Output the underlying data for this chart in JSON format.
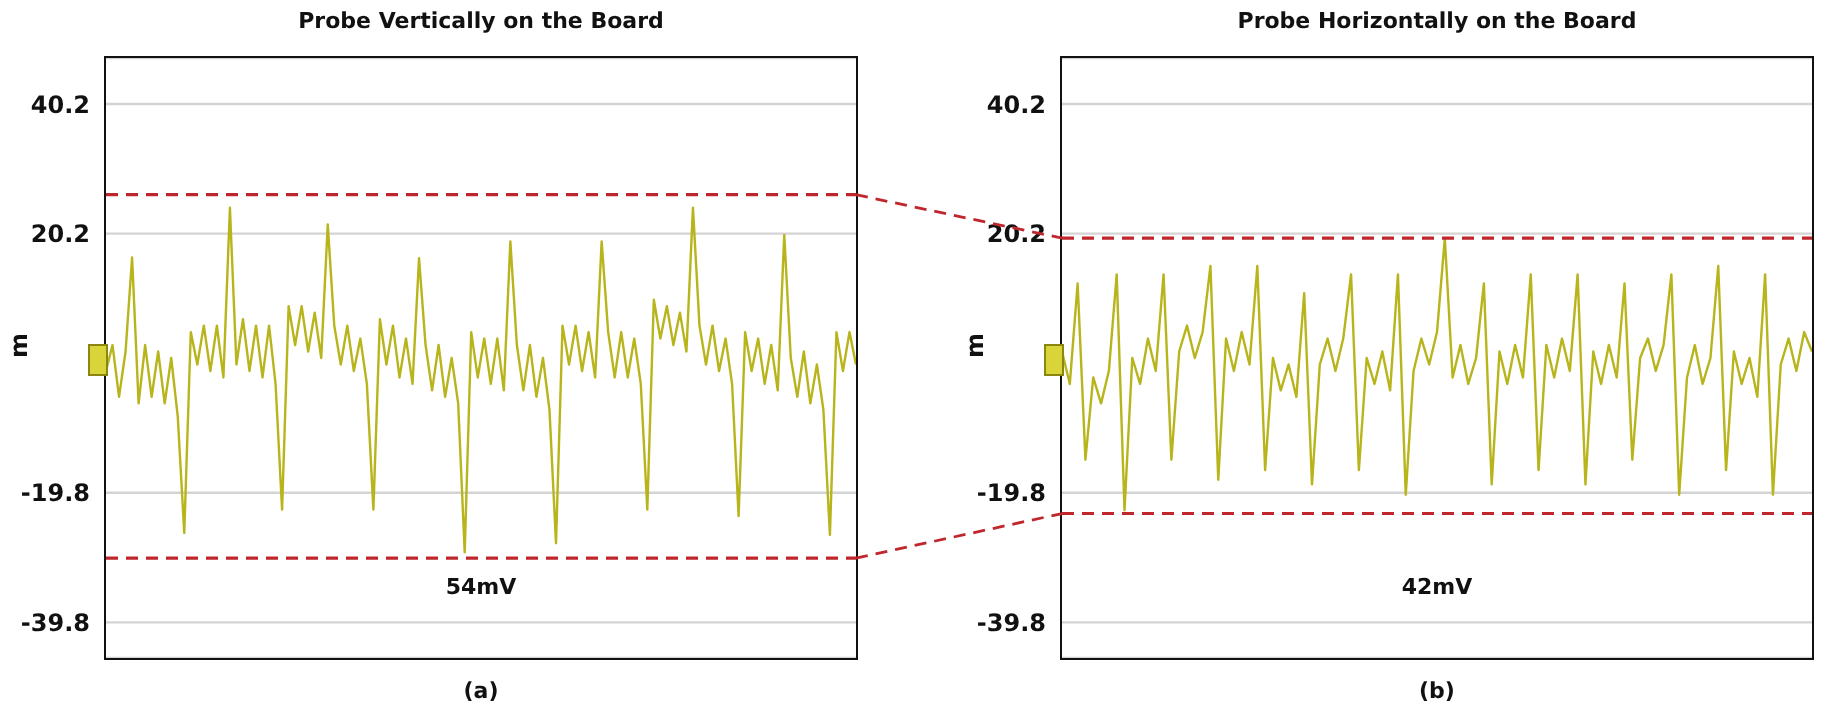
{
  "chart_data": [
    {
      "type": "line",
      "title": "Probe Vertically on the Board",
      "ylabel": "m",
      "annotations": [
        "54mV",
        "(a)"
      ],
      "categories": [
        null,
        null,
        null,
        null,
        null,
        null,
        null,
        null,
        null,
        null,
        null,
        null,
        null,
        null,
        null,
        null,
        null,
        null,
        null,
        null,
        null,
        null,
        null,
        null,
        null,
        null,
        null,
        null,
        null,
        null,
        null,
        null,
        null,
        null,
        null,
        null,
        null,
        null,
        null,
        null,
        null,
        null,
        null,
        null,
        null,
        null,
        null,
        null,
        null,
        null,
        null,
        null,
        null,
        null,
        null,
        null,
        null,
        null,
        null,
        null,
        null,
        null,
        null,
        null,
        null,
        null,
        null,
        null,
        null,
        null,
        null,
        null,
        null,
        null,
        null,
        null,
        null,
        null,
        null,
        null,
        null,
        null,
        null,
        null,
        null,
        null,
        null,
        null,
        null,
        null,
        null,
        null,
        null,
        null,
        null,
        null,
        null,
        null,
        null,
        null,
        null,
        null,
        null,
        null,
        null,
        null,
        null,
        null,
        null,
        null,
        null,
        null,
        null,
        null,
        null,
        null
      ],
      "series": [
        {
          "color": "#b8b41c",
          "values": [
            -1,
            3,
            -5,
            2,
            16.5,
            -6,
            3,
            -5,
            2,
            -6,
            1,
            -8,
            -26,
            5,
            0,
            6,
            -1,
            6,
            -2,
            24.2,
            0,
            7,
            -1,
            6,
            -2,
            6,
            -3,
            -22.4,
            9,
            3,
            9,
            2,
            8,
            1,
            21.6,
            6,
            0,
            6,
            -1,
            4,
            -3,
            -22.4,
            7,
            0,
            6,
            -2,
            4,
            -3,
            16.4,
            3,
            -4,
            3,
            -5,
            1,
            -6,
            -29,
            5,
            -2,
            4,
            -3,
            4,
            -4,
            19,
            3,
            -4,
            3,
            -5,
            1,
            -7,
            -27.6,
            6,
            0,
            6,
            -1,
            5,
            -2,
            19,
            5,
            -2,
            5,
            -2,
            4,
            -3,
            -22.4,
            10,
            4,
            9,
            3,
            8,
            2,
            24.2,
            6,
            0,
            6,
            -1,
            4,
            -3,
            -23.4,
            5,
            -1,
            4,
            -3,
            3,
            -4,
            20,
            1,
            -5,
            2,
            -6,
            0,
            -7,
            -26.3,
            5,
            -1,
            5,
            0
          ]
        }
      ],
      "ylim": [
        -45.3,
        47.3
      ],
      "yticks": [
        -39.8,
        -19.8,
        20.2,
        40.2
      ],
      "tick_labels": "y",
      "grid": "y",
      "marker": "none",
      "line_style": "solid",
      "ref_lines": [
        {
          "axis": "y",
          "value": 26.2,
          "color": "#c0272d",
          "line_style": "dashed"
        },
        {
          "axis": "y",
          "value": -29.9,
          "color": "#c0272d",
          "line_style": "dashed"
        }
      ]
    },
    {
      "type": "line",
      "title": "Probe Horizontally on the Board",
      "ylabel": "m",
      "annotations": [
        "42mV",
        "(b)"
      ],
      "categories": [
        null,
        null,
        null,
        null,
        null,
        null,
        null,
        null,
        null,
        null,
        null,
        null,
        null,
        null,
        null,
        null,
        null,
        null,
        null,
        null,
        null,
        null,
        null,
        null,
        null,
        null,
        null,
        null,
        null,
        null,
        null,
        null,
        null,
        null,
        null,
        null,
        null,
        null,
        null,
        null,
        null,
        null,
        null,
        null,
        null,
        null,
        null,
        null,
        null,
        null,
        null,
        null,
        null,
        null,
        null,
        null,
        null,
        null,
        null,
        null,
        null,
        null,
        null,
        null,
        null,
        null,
        null,
        null,
        null,
        null,
        null,
        null,
        null,
        null,
        null,
        null,
        null,
        null,
        null,
        null,
        null,
        null,
        null,
        null,
        null,
        null,
        null,
        null,
        null,
        null,
        null,
        null,
        null,
        null,
        null,
        null,
        null
      ],
      "series": [
        {
          "color": "#b8b41c",
          "values": [
            2,
            -3,
            12.5,
            -14.7,
            -2,
            -6,
            -1,
            13.9,
            -22.5,
            1,
            -3,
            4,
            -1,
            13.9,
            -14.7,
            2,
            6,
            1,
            5,
            15.2,
            -17.8,
            4,
            -1,
            5,
            0,
            15.2,
            -16.3,
            1,
            -4,
            0,
            -5,
            11,
            -18.5,
            0,
            4,
            -1,
            4,
            13.9,
            -16.3,
            1,
            -3,
            2,
            -4,
            13.9,
            -20.1,
            -1,
            4,
            0,
            5,
            19.5,
            -2,
            3,
            -3,
            1,
            12.5,
            -18.5,
            2,
            -3,
            3,
            -2,
            13.9,
            -16.3,
            3,
            -2,
            4,
            -1,
            13.9,
            -18.5,
            2,
            -3,
            3,
            -2,
            12.5,
            -14.7,
            1,
            4,
            -1,
            3,
            13.9,
            -20.1,
            -2,
            3,
            -3,
            1,
            15.2,
            -16.3,
            2,
            -3,
            1,
            -5,
            13.9,
            -20.1,
            0,
            4,
            -1,
            5,
            2
          ]
        }
      ],
      "ylim": [
        -45.3,
        47.3
      ],
      "yticks": [
        -39.8,
        -19.8,
        20.2,
        40.2
      ],
      "tick_labels": "y",
      "grid": "y",
      "marker": "none",
      "line_style": "solid",
      "ref_lines": [
        {
          "axis": "y",
          "value": 19.5,
          "color": "#c0272d",
          "line_style": "dashed"
        },
        {
          "axis": "y",
          "value": -23.0,
          "color": "#c0272d",
          "line_style": "dashed"
        }
      ]
    }
  ]
}
